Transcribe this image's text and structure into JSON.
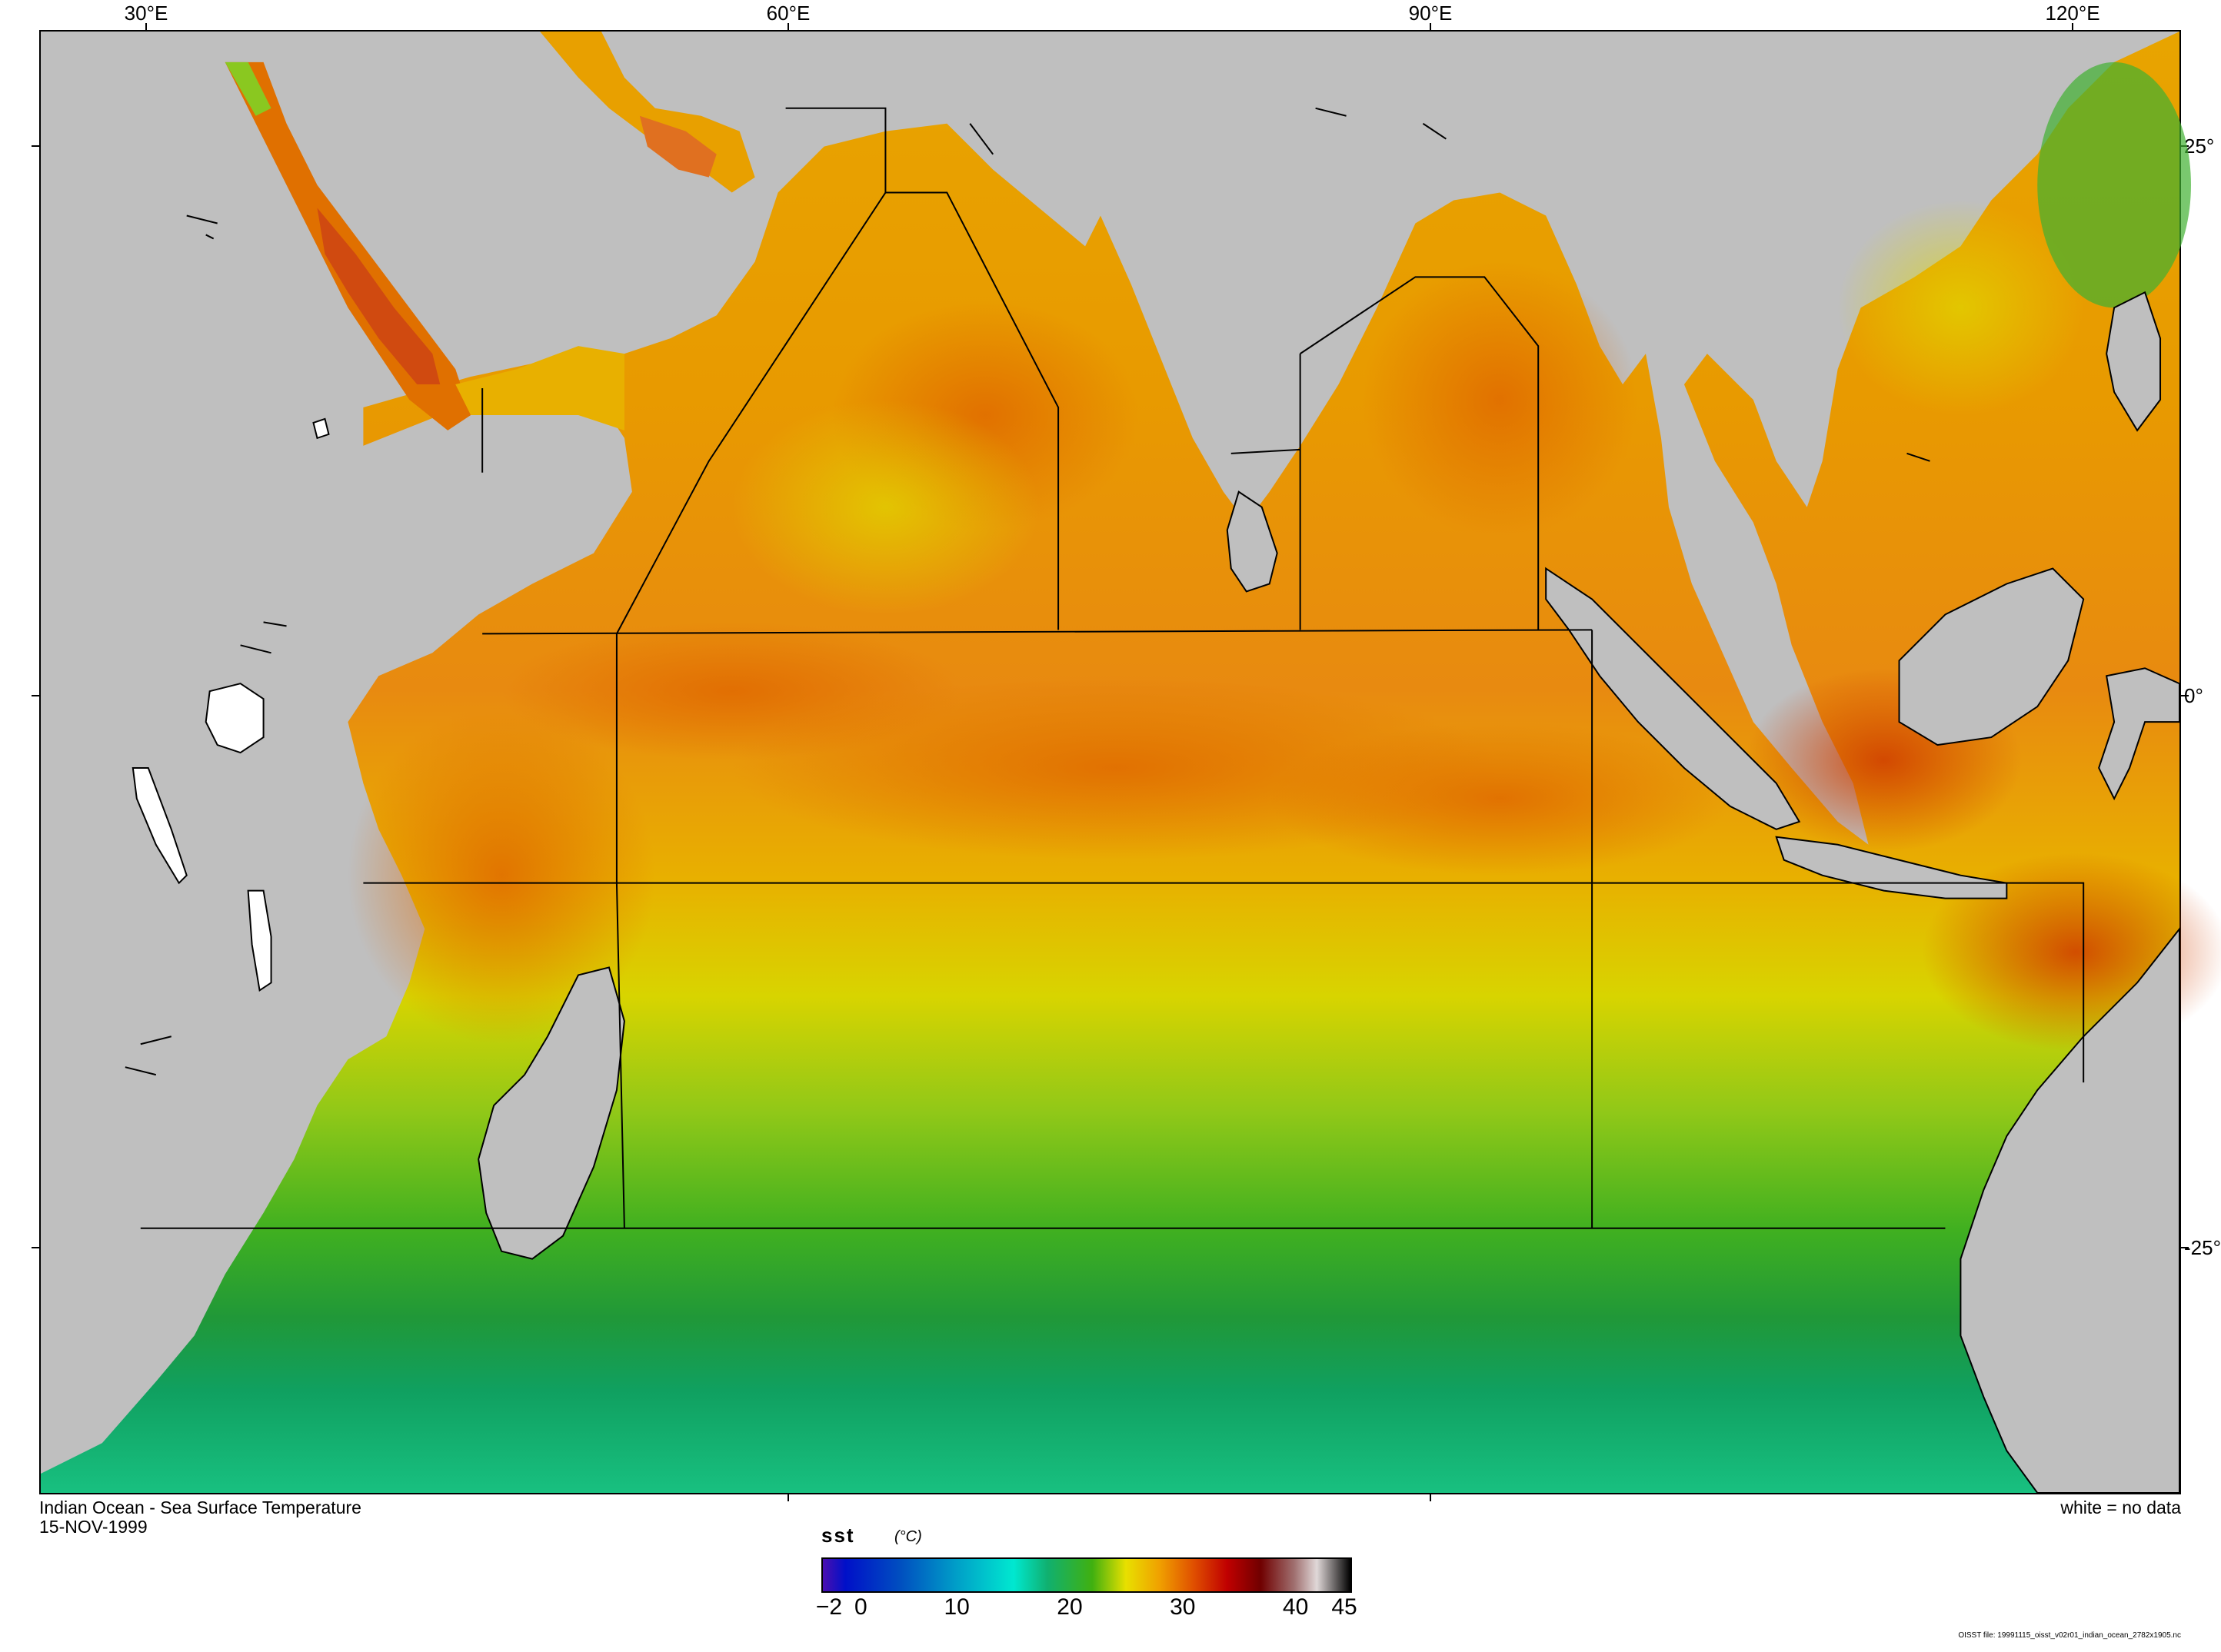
{
  "map": {
    "title": "Indian Ocean - Sea Surface Temperature",
    "date": "15-NOV-1999",
    "no_data_note": "white = no data",
    "file_note": "OISST file: 19991115_oisst_v02r01_indian_ocean_2782x1905.nc",
    "longitude_labels": [
      "30°E",
      "60°E",
      "90°E",
      "120°E"
    ],
    "latitude_labels": [
      "25°",
      "0°",
      "-25°"
    ],
    "land_color": "#bfbfbf",
    "no_data_color": "#ffffff",
    "sea_colors": {
      "warm": "#e8a800",
      "hot": "#e06000",
      "mild": "#d8d800",
      "cool": "#40b020",
      "cold": "#10a060"
    }
  },
  "colorbar": {
    "variable": "sst",
    "unit": "(°C)",
    "min": -2,
    "max": 45,
    "tick_labels": [
      "−2",
      "0",
      "10",
      "20",
      "30",
      "40",
      "45"
    ],
    "tick_values": [
      -2,
      0,
      10,
      20,
      30,
      40,
      45
    ],
    "stops": [
      {
        "value": -2,
        "color": "#4b0fb0"
      },
      {
        "value": 0,
        "color": "#0010c8"
      },
      {
        "value": 5,
        "color": "#0050c0"
      },
      {
        "value": 10,
        "color": "#00a0c8"
      },
      {
        "value": 15,
        "color": "#00e8d0"
      },
      {
        "value": 18,
        "color": "#10b070"
      },
      {
        "value": 22,
        "color": "#40b010"
      },
      {
        "value": 25,
        "color": "#e8e000"
      },
      {
        "value": 28,
        "color": "#f0a000"
      },
      {
        "value": 31,
        "color": "#e05000"
      },
      {
        "value": 34,
        "color": "#c00000"
      },
      {
        "value": 37,
        "color": "#700000"
      },
      {
        "value": 40,
        "color": "#a07070"
      },
      {
        "value": 42,
        "color": "#e0d8d8"
      },
      {
        "value": 45,
        "color": "#000000"
      }
    ]
  }
}
